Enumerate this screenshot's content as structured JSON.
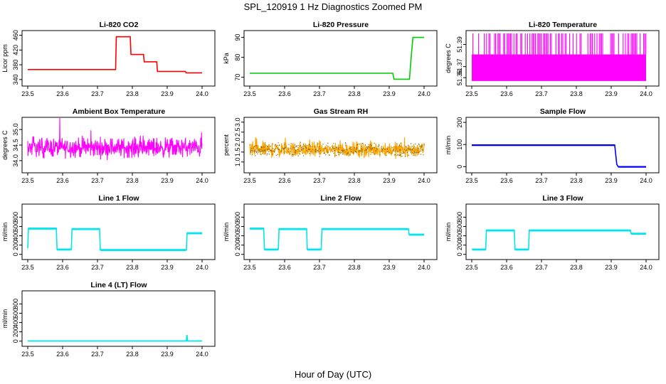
{
  "figure": {
    "title": "SPL_120919  1 Hz Diagnostics Zoomed PM",
    "xlabel": "Hour of Day (UTC)"
  },
  "chart_data": [
    {
      "type": "line",
      "title": "Li-820 CO2",
      "xlabel": "",
      "ylabel": "Licor ppm",
      "xlim": [
        23.5,
        24.0
      ],
      "ylim": [
        330,
        465
      ],
      "xticks": [
        "23.5",
        "23.6",
        "23.7",
        "23.8",
        "23.9",
        "24.0"
      ],
      "yticks": [
        340,
        380,
        420,
        460
      ],
      "ytick_labels": [
        "340",
        "380",
        "420",
        "460"
      ],
      "color": "#ff0000",
      "noise": 0,
      "series": [
        {
          "x": [
            23.5,
            23.752,
            23.754,
            23.794,
            23.796,
            23.832,
            23.834,
            23.87,
            23.872,
            23.952,
            23.954,
            24.0
          ],
          "values": [
            367,
            367,
            456,
            456,
            408,
            408,
            388,
            388,
            362,
            362,
            358,
            358
          ]
        }
      ]
    },
    {
      "type": "line",
      "title": "Li-820 Pressure",
      "xlabel": "",
      "ylabel": "kPa",
      "xlim": [
        23.5,
        24.0
      ],
      "ylim": [
        67,
        92
      ],
      "xticks": [
        "23.5",
        "23.6",
        "23.7",
        "23.8",
        "23.9",
        "24.0"
      ],
      "yticks": [
        70,
        80,
        90
      ],
      "ytick_labels": [
        "70",
        "80",
        "90"
      ],
      "color": "#00cc00",
      "noise": 0,
      "series": [
        {
          "x": [
            23.5,
            23.91,
            23.914,
            23.958,
            23.963,
            23.968,
            24.0
          ],
          "values": [
            72,
            72,
            69,
            69,
            80,
            90,
            90
          ]
        }
      ]
    },
    {
      "type": "line",
      "title": "Li-820 Temperature",
      "xlabel": "",
      "ylabel": "degrees C",
      "xlim": [
        23.5,
        24.0
      ],
      "ylim": [
        51.355,
        51.4
      ],
      "xticks": [
        "23.5",
        "23.6",
        "23.7",
        "23.8",
        "23.9",
        "24.0"
      ],
      "yticks": [
        51.36,
        51.37,
        51.39
      ],
      "ytick_labels": [
        "51.36",
        "51.37",
        "51.39"
      ],
      "color": "#ff00ff",
      "noise": 0,
      "style": "bimodal",
      "low": 51.357,
      "high": 51.4,
      "band_top": 51.381
    },
    {
      "type": "line",
      "title": "Ambient Box Temperature",
      "xlabel": "",
      "ylabel": "degrees C",
      "xlim": [
        23.5,
        24.0
      ],
      "ylim": [
        33.7,
        35.3
      ],
      "xticks": [
        "23.5",
        "23.6",
        "23.7",
        "23.8",
        "23.9",
        "24.0"
      ],
      "yticks": [
        34.0,
        34.5,
        35.0
      ],
      "ytick_labels": [
        "34.0",
        "34.5",
        "35.0"
      ],
      "color": "#ff00ff",
      "noise": 0,
      "style": "noise",
      "center": 34.42,
      "amp": 0.45
    },
    {
      "type": "line",
      "title": "Gas Stream RH",
      "xlabel": "",
      "ylabel": "percent",
      "xlim": [
        23.5,
        24.0
      ],
      "ylim": [
        0.6,
        3.1
      ],
      "xticks": [
        "23.5",
        "23.6",
        "23.7",
        "23.8",
        "23.9",
        "24.0"
      ],
      "yticks": [
        1.0,
        1.5,
        2.0,
        2.5,
        3.0
      ],
      "ytick_labels": [
        "1.0",
        "1.5",
        "2.0",
        "2.5",
        "3.0"
      ],
      "color": "#ffa500",
      "noise": 0,
      "style": "noise",
      "center": 1.62,
      "amp": 0.55,
      "point_color": "#886600"
    },
    {
      "type": "line",
      "title": "Sample Flow",
      "xlabel": "",
      "ylabel": "ml/min",
      "xlim": [
        23.5,
        24.0
      ],
      "ylim": [
        -15,
        210
      ],
      "xticks": [
        "23.5",
        "23.6",
        "23.7",
        "23.8",
        "23.9",
        "24.0"
      ],
      "yticks": [
        0,
        100,
        200
      ],
      "ytick_labels": [
        "0",
        "100",
        "200"
      ],
      "color": "#0000ff",
      "noise": 2,
      "series": [
        {
          "x": [
            23.5,
            23.91,
            23.916,
            23.92,
            24.0
          ],
          "values": [
            98,
            98,
            10,
            0,
            0
          ]
        }
      ]
    },
    {
      "type": "line",
      "title": "Line 1 Flow",
      "xlabel": "",
      "ylabel": "ml/min",
      "xlim": [
        23.5,
        24.0
      ],
      "ylim": [
        -50,
        1020
      ],
      "xticks": [
        "23.5",
        "23.6",
        "23.7",
        "23.8",
        "23.9",
        "24.0"
      ],
      "yticks": [
        0,
        200,
        400,
        600,
        800
      ],
      "ytick_labels": [
        "0",
        "200",
        "400",
        "600",
        "800"
      ],
      "color": "#00e5ee",
      "noise": 15,
      "series": [
        {
          "x": [
            23.5,
            23.502,
            23.582,
            23.584,
            23.625,
            23.627,
            23.706,
            23.708,
            23.955,
            23.957,
            24.0
          ],
          "values": [
            130,
            560,
            560,
            110,
            110,
            550,
            550,
            100,
            100,
            460,
            460
          ]
        }
      ]
    },
    {
      "type": "line",
      "title": "Line 2 Flow",
      "xlabel": "",
      "ylabel": "ml/min",
      "xlim": [
        23.5,
        24.0
      ],
      "ylim": [
        -50,
        1020
      ],
      "xticks": [
        "23.5",
        "23.6",
        "23.7",
        "23.8",
        "23.9",
        "24.0"
      ],
      "yticks": [
        0,
        200,
        400,
        600,
        800
      ],
      "ytick_labels": [
        "0",
        "200",
        "400",
        "600",
        "800"
      ],
      "color": "#00e5ee",
      "noise": 15,
      "series": [
        {
          "x": [
            23.5,
            23.54,
            23.542,
            23.582,
            23.584,
            23.663,
            23.665,
            23.705,
            23.707,
            23.955,
            23.957,
            24.0
          ],
          "values": [
            560,
            560,
            110,
            110,
            550,
            550,
            110,
            110,
            550,
            550,
            430,
            430
          ]
        }
      ]
    },
    {
      "type": "line",
      "title": "Line 3 Flow",
      "xlabel": "",
      "ylabel": "ml/min",
      "xlim": [
        23.5,
        24.0
      ],
      "ylim": [
        -50,
        1020
      ],
      "xticks": [
        "23.5",
        "23.6",
        "23.7",
        "23.8",
        "23.9",
        "24.0"
      ],
      "yticks": [
        0,
        200,
        400,
        600,
        800
      ],
      "ytick_labels": [
        "0",
        "200",
        "400",
        "600",
        "800"
      ],
      "color": "#00e5ee",
      "noise": 15,
      "series": [
        {
          "x": [
            23.5,
            23.502,
            23.54,
            23.542,
            23.622,
            23.624,
            23.663,
            23.665,
            23.955,
            23.957,
            24.0
          ],
          "values": [
            110,
            110,
            110,
            520,
            520,
            110,
            110,
            520,
            520,
            450,
            450
          ]
        }
      ]
    },
    {
      "type": "line",
      "title": "Line 4 (LT) Flow",
      "xlabel": "",
      "ylabel": "ml/min",
      "xlim": [
        23.5,
        24.0
      ],
      "ylim": [
        -50,
        1020
      ],
      "xticks": [
        "23.5",
        "23.6",
        "23.7",
        "23.8",
        "23.9",
        "24.0"
      ],
      "yticks": [
        0,
        200,
        400,
        600,
        800
      ],
      "ytick_labels": [
        "0",
        "200",
        "400",
        "600",
        "800"
      ],
      "color": "#00e5ee",
      "noise": 2,
      "series": [
        {
          "x": [
            23.5,
            23.955,
            23.956,
            23.957,
            23.958,
            24.0
          ],
          "values": [
            5,
            5,
            120,
            120,
            5,
            5
          ]
        }
      ]
    }
  ]
}
